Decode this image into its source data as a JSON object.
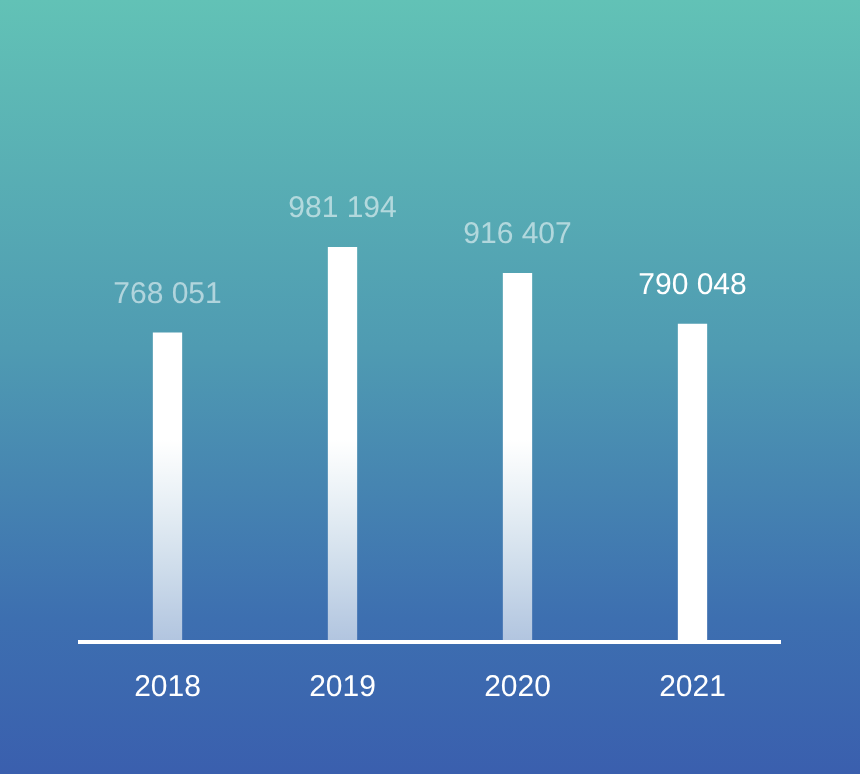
{
  "chart_data": {
    "type": "bar",
    "categories": [
      "2018",
      "2019",
      "2020",
      "2021"
    ],
    "values": [
      768051,
      981194,
      916407,
      790048
    ],
    "value_labels": [
      "768 051",
      "981 194",
      "916 407",
      "790 048"
    ],
    "color": "#ffffff",
    "grid": false,
    "legend": false
  }
}
